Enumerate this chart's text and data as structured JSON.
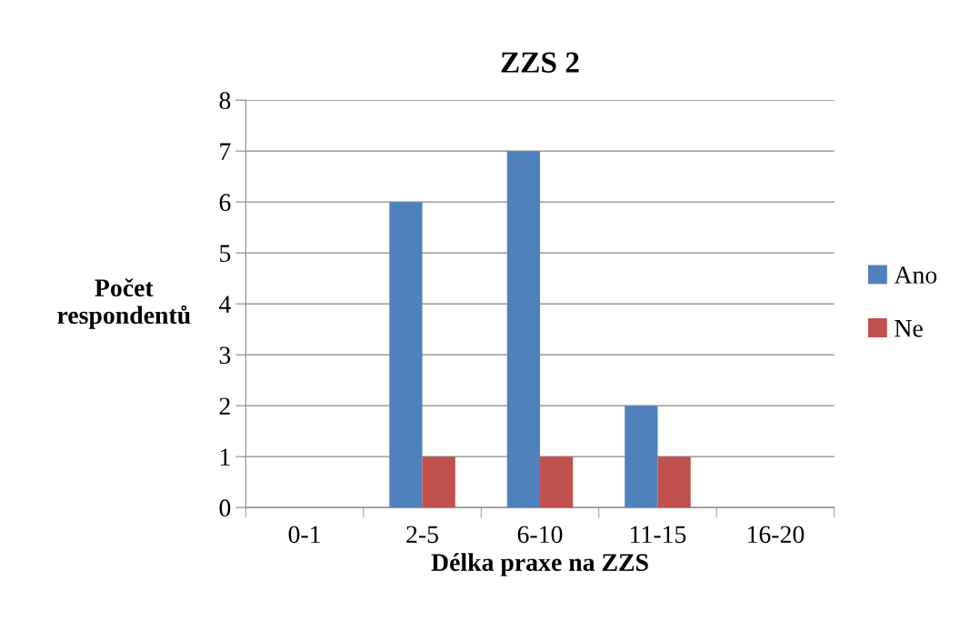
{
  "chart_data": {
    "type": "bar",
    "title": "ZZS 2",
    "xlabel": "Délka praxe na ZZS",
    "ylabel": "Počet\nrespondentů",
    "categories": [
      "0-1",
      "2-5",
      "6-10",
      "11-15",
      "16-20"
    ],
    "series": [
      {
        "name": "Ano",
        "color": "#4f81bd",
        "values": [
          0,
          6,
          7,
          2,
          0
        ]
      },
      {
        "name": "Ne",
        "color": "#c0504d",
        "values": [
          0,
          1,
          1,
          1,
          0
        ]
      }
    ],
    "ylim": [
      0,
      8
    ],
    "yticks": [
      0,
      1,
      2,
      3,
      4,
      5,
      6,
      7,
      8
    ],
    "grid": "y",
    "legend": "right"
  }
}
